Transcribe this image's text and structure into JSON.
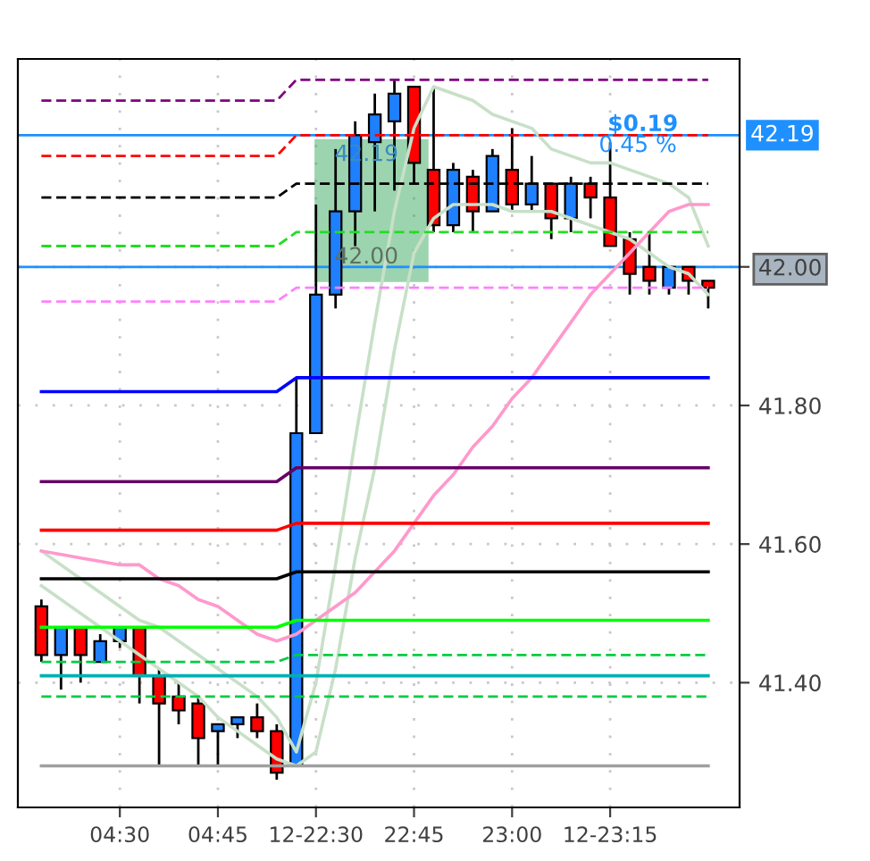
{
  "chart_data": {
    "type": "candlestick",
    "categories": [
      null,
      null,
      null,
      null,
      "04:30",
      null,
      null,
      null,
      null,
      "04:45",
      null,
      null,
      null,
      null,
      "12-22:30",
      null,
      null,
      null,
      null,
      "22:45",
      null,
      null,
      null,
      null,
      "23:00",
      null,
      null,
      null,
      null,
      "12-23:15",
      null,
      null,
      null,
      null,
      null
    ],
    "ylim": [
      41.22,
      42.3
    ],
    "yticks": [
      {
        "value": 41.4,
        "label": "41.40"
      },
      {
        "value": 41.6,
        "label": "41.60"
      },
      {
        "value": 41.8,
        "label": "41.80"
      },
      {
        "value": 42.0,
        "label": "42.00"
      }
    ],
    "grid": true,
    "ref_lines": [
      {
        "axis": "y",
        "value": 42.0,
        "color": "#1e90ff"
      },
      {
        "axis": "y",
        "value": 42.19,
        "label": "42.19",
        "color": "#1e90ff"
      }
    ],
    "annotations": [
      "42.19",
      "42.00",
      "$0.19",
      "0.45 %"
    ],
    "series": [
      {
        "type": "line",
        "color": "#c8e0c8",
        "values": [
          41.59,
          41.57,
          41.55,
          41.53,
          41.51,
          41.49,
          41.48,
          41.46,
          41.44,
          41.42,
          41.4,
          41.38,
          41.35,
          41.3,
          41.4,
          41.57,
          41.75,
          41.92,
          42.08,
          42.2,
          42.26,
          42.25,
          42.24,
          42.22,
          42.21,
          42.2,
          42.17,
          42.16,
          42.15,
          42.15,
          42.14,
          42.13,
          42.12,
          42.1,
          42.03
        ]
      },
      {
        "type": "line",
        "color": "#c8e0c8",
        "values": [
          41.54,
          41.52,
          41.5,
          41.48,
          41.46,
          41.44,
          41.42,
          41.4,
          41.38,
          41.35,
          41.33,
          41.31,
          41.29,
          41.28,
          41.3,
          41.42,
          41.58,
          41.71,
          41.88,
          42.02,
          42.07,
          42.09,
          42.09,
          42.09,
          42.08,
          42.08,
          42.08,
          42.07,
          42.06,
          42.05,
          42.04,
          42.02,
          42.0,
          41.99,
          41.96
        ]
      },
      {
        "type": "line",
        "color": "#ff99cc",
        "values": [
          41.59,
          41.585,
          41.58,
          41.575,
          41.57,
          41.57,
          41.55,
          41.54,
          41.52,
          41.51,
          41.49,
          41.47,
          41.46,
          41.47,
          41.49,
          41.51,
          41.53,
          41.56,
          41.59,
          41.63,
          41.67,
          41.7,
          41.74,
          41.77,
          41.81,
          41.84,
          41.88,
          41.92,
          41.96,
          41.99,
          42.02,
          42.05,
          42.08,
          42.09,
          42.09
        ]
      },
      {
        "type": "line",
        "color": "#800080",
        "line_style": "dashed",
        "values": [
          42.24,
          42.24,
          42.24,
          42.24,
          42.24,
          42.24,
          42.24,
          42.24,
          42.24,
          42.24,
          42.24,
          42.24,
          42.24,
          42.27,
          42.27,
          42.27,
          42.27,
          42.27,
          42.27,
          42.27,
          42.27,
          42.27,
          42.27,
          42.27,
          42.27,
          42.27,
          42.27,
          42.27,
          42.27,
          42.27,
          42.27,
          42.27,
          42.27,
          42.27,
          42.27
        ]
      },
      {
        "type": "line",
        "color": "#ff0000",
        "line_style": "dashed",
        "values": [
          42.16,
          42.16,
          42.16,
          42.16,
          42.16,
          42.16,
          42.16,
          42.16,
          42.16,
          42.16,
          42.16,
          42.16,
          42.16,
          42.19,
          42.19,
          42.19,
          42.19,
          42.19,
          42.19,
          42.19,
          42.19,
          42.19,
          42.19,
          42.19,
          42.19,
          42.19,
          42.19,
          42.19,
          42.19,
          42.19,
          42.19,
          42.19,
          42.19,
          42.19,
          42.19
        ]
      },
      {
        "type": "line",
        "color": "#000000",
        "line_style": "dashed",
        "values": [
          42.1,
          42.1,
          42.1,
          42.1,
          42.1,
          42.1,
          42.1,
          42.1,
          42.1,
          42.1,
          42.1,
          42.1,
          42.1,
          42.12,
          42.12,
          42.12,
          42.12,
          42.12,
          42.12,
          42.12,
          42.12,
          42.12,
          42.12,
          42.12,
          42.12,
          42.12,
          42.12,
          42.12,
          42.12,
          42.12,
          42.12,
          42.12,
          42.12,
          42.12,
          42.12
        ]
      },
      {
        "type": "line",
        "color": "#22dd22",
        "line_style": "dashed",
        "values": [
          42.03,
          42.03,
          42.03,
          42.03,
          42.03,
          42.03,
          42.03,
          42.03,
          42.03,
          42.03,
          42.03,
          42.03,
          42.03,
          42.05,
          42.05,
          42.05,
          42.05,
          42.05,
          42.05,
          42.05,
          42.05,
          42.05,
          42.05,
          42.05,
          42.05,
          42.05,
          42.05,
          42.05,
          42.05,
          42.05,
          42.05,
          42.05,
          42.05,
          42.05,
          42.05
        ]
      },
      {
        "type": "line",
        "color": "#ff80ff",
        "line_style": "dashed",
        "values": [
          41.95,
          41.95,
          41.95,
          41.95,
          41.95,
          41.95,
          41.95,
          41.95,
          41.95,
          41.95,
          41.95,
          41.95,
          41.95,
          41.97,
          41.97,
          41.97,
          41.97,
          41.97,
          41.97,
          41.97,
          41.97,
          41.97,
          41.97,
          41.97,
          41.97,
          41.97,
          41.97,
          41.97,
          41.97,
          41.97,
          41.97,
          41.97,
          41.97,
          41.97,
          41.97
        ]
      },
      {
        "type": "line",
        "color": "#0000ff",
        "values": [
          41.82,
          41.82,
          41.82,
          41.82,
          41.82,
          41.82,
          41.82,
          41.82,
          41.82,
          41.82,
          41.82,
          41.82,
          41.82,
          41.84,
          41.84,
          41.84,
          41.84,
          41.84,
          41.84,
          41.84,
          41.84,
          41.84,
          41.84,
          41.84,
          41.84,
          41.84,
          41.84,
          41.84,
          41.84,
          41.84,
          41.84,
          41.84,
          41.84,
          41.84,
          41.84
        ]
      },
      {
        "type": "line",
        "color": "#660066",
        "values": [
          41.69,
          41.69,
          41.69,
          41.69,
          41.69,
          41.69,
          41.69,
          41.69,
          41.69,
          41.69,
          41.69,
          41.69,
          41.69,
          41.71,
          41.71,
          41.71,
          41.71,
          41.71,
          41.71,
          41.71,
          41.71,
          41.71,
          41.71,
          41.71,
          41.71,
          41.71,
          41.71,
          41.71,
          41.71,
          41.71,
          41.71,
          41.71,
          41.71,
          41.71,
          41.71
        ]
      },
      {
        "type": "line",
        "color": "#ff0000",
        "values": [
          41.62,
          41.62,
          41.62,
          41.62,
          41.62,
          41.62,
          41.62,
          41.62,
          41.62,
          41.62,
          41.62,
          41.62,
          41.62,
          41.63,
          41.63,
          41.63,
          41.63,
          41.63,
          41.63,
          41.63,
          41.63,
          41.63,
          41.63,
          41.63,
          41.63,
          41.63,
          41.63,
          41.63,
          41.63,
          41.63,
          41.63,
          41.63,
          41.63,
          41.63,
          41.63
        ]
      },
      {
        "type": "line",
        "color": "#000000",
        "values": [
          41.55,
          41.55,
          41.55,
          41.55,
          41.55,
          41.55,
          41.55,
          41.55,
          41.55,
          41.55,
          41.55,
          41.55,
          41.55,
          41.56,
          41.56,
          41.56,
          41.56,
          41.56,
          41.56,
          41.56,
          41.56,
          41.56,
          41.56,
          41.56,
          41.56,
          41.56,
          41.56,
          41.56,
          41.56,
          41.56,
          41.56,
          41.56,
          41.56,
          41.56,
          41.56
        ]
      },
      {
        "type": "line",
        "color": "#00ff00",
        "values": [
          41.48,
          41.48,
          41.48,
          41.48,
          41.48,
          41.48,
          41.48,
          41.48,
          41.48,
          41.48,
          41.48,
          41.48,
          41.48,
          41.49,
          41.49,
          41.49,
          41.49,
          41.49,
          41.49,
          41.49,
          41.49,
          41.49,
          41.49,
          41.49,
          41.49,
          41.49,
          41.49,
          41.49,
          41.49,
          41.49,
          41.49,
          41.49,
          41.49,
          41.49,
          41.49
        ]
      },
      {
        "type": "line",
        "color": "#00cc44",
        "line_style": "dashed",
        "values": [
          41.43,
          41.43,
          41.43,
          41.43,
          41.43,
          41.43,
          41.43,
          41.43,
          41.43,
          41.43,
          41.43,
          41.43,
          41.43,
          41.44,
          41.44,
          41.44,
          41.44,
          41.44,
          41.44,
          41.44,
          41.44,
          41.44,
          41.44,
          41.44,
          41.44,
          41.44,
          41.44,
          41.44,
          41.44,
          41.44,
          41.44,
          41.44,
          41.44,
          41.44,
          41.44
        ]
      },
      {
        "type": "line",
        "color": "#00b0b0",
        "values": [
          41.41,
          41.41,
          41.41,
          41.41,
          41.41,
          41.41,
          41.41,
          41.41,
          41.41,
          41.41,
          41.41,
          41.41,
          41.41,
          41.41,
          41.41,
          41.41,
          41.41,
          41.41,
          41.41,
          41.41,
          41.41,
          41.41,
          41.41,
          41.41,
          41.41,
          41.41,
          41.41,
          41.41,
          41.41,
          41.41,
          41.41,
          41.41,
          41.41,
          41.41,
          41.41
        ]
      },
      {
        "type": "line",
        "color": "#00cc44",
        "line_style": "dashed",
        "values": [
          41.38,
          41.38,
          41.38,
          41.38,
          41.38,
          41.38,
          41.38,
          41.38,
          41.38,
          41.38,
          41.38,
          41.38,
          41.38,
          41.38,
          41.38,
          41.38,
          41.38,
          41.38,
          41.38,
          41.38,
          41.38,
          41.38,
          41.38,
          41.38,
          41.38,
          41.38,
          41.38,
          41.38,
          41.38,
          41.38,
          41.38,
          41.38,
          41.38,
          41.38,
          41.38
        ]
      },
      {
        "type": "line",
        "color": "#a0a0a0",
        "values": [
          41.28,
          41.28,
          41.28,
          41.28,
          41.28,
          41.28,
          41.28,
          41.28,
          41.28,
          41.28,
          41.28,
          41.28,
          41.28,
          41.28,
          41.28,
          41.28,
          41.28,
          41.28,
          41.28,
          41.28,
          41.28,
          41.28,
          41.28,
          41.28,
          41.28,
          41.28,
          41.28,
          41.28,
          41.28,
          41.28,
          41.28,
          41.28,
          41.28,
          41.28,
          41.28
        ]
      },
      {
        "type": "candlestick",
        "colors": [
          "#ff0000",
          "#1e7fff",
          "#ff0000",
          "#1e7fff",
          "#1e7fff",
          "#ff0000",
          "#ff0000",
          "#ff0000",
          "#ff0000",
          "#1e7fff",
          "#1e7fff",
          "#ff0000",
          "#ff0000",
          "#1e7fff",
          "#1e7fff",
          "#1e7fff",
          "#1e7fff",
          "#1e7fff",
          "#1e7fff",
          "#ff0000",
          "#ff0000",
          "#1e7fff",
          "#ff0000",
          "#1e7fff",
          "#ff0000",
          "#1e7fff",
          "#ff0000",
          "#1e7fff",
          "#ff0000",
          "#ff0000",
          "#ff0000",
          "#ff0000",
          "#1e7fff",
          "#ff0000",
          "#ff0000"
        ],
        "ohlc": [
          [
            41.51,
            41.52,
            41.43,
            41.44
          ],
          [
            41.44,
            41.48,
            41.39,
            41.48
          ],
          [
            41.48,
            41.48,
            41.4,
            41.44
          ],
          [
            41.43,
            41.47,
            41.43,
            41.46
          ],
          [
            41.46,
            41.48,
            41.45,
            41.48
          ],
          [
            41.48,
            41.48,
            41.37,
            41.41
          ],
          [
            41.41,
            41.42,
            41.28,
            41.37
          ],
          [
            41.38,
            41.4,
            41.34,
            41.36
          ],
          [
            41.37,
            41.38,
            41.28,
            41.32
          ],
          [
            41.33,
            41.34,
            41.28,
            41.34
          ],
          [
            41.34,
            41.35,
            41.32,
            41.35
          ],
          [
            41.35,
            41.37,
            41.32,
            41.33
          ],
          [
            41.33,
            41.34,
            41.26,
            41.27
          ],
          [
            41.28,
            41.84,
            41.28,
            41.76
          ],
          [
            41.76,
            42.09,
            41.76,
            41.96
          ],
          [
            41.96,
            42.17,
            41.94,
            42.08
          ],
          [
            42.08,
            42.21,
            42.03,
            42.19
          ],
          [
            42.18,
            42.25,
            42.08,
            42.22
          ],
          [
            42.21,
            42.27,
            42.11,
            42.25
          ],
          [
            42.26,
            42.26,
            42.12,
            42.15
          ],
          [
            42.14,
            42.26,
            42.05,
            42.06
          ],
          [
            42.06,
            42.15,
            42.05,
            42.14
          ],
          [
            42.13,
            42.14,
            42.05,
            42.08
          ],
          [
            42.08,
            42.17,
            42.08,
            42.16
          ],
          [
            42.14,
            42.2,
            42.08,
            42.09
          ],
          [
            42.09,
            42.16,
            42.08,
            42.12
          ],
          [
            42.12,
            42.12,
            42.04,
            42.07
          ],
          [
            42.07,
            42.13,
            42.05,
            42.12
          ],
          [
            42.12,
            42.13,
            42.07,
            42.1
          ],
          [
            42.1,
            42.18,
            42.03,
            42.03
          ],
          [
            42.04,
            42.05,
            41.96,
            41.99
          ],
          [
            42.0,
            42.05,
            41.96,
            41.98
          ],
          [
            41.97,
            42.0,
            41.96,
            42.0
          ],
          [
            42.0,
            42.0,
            41.96,
            41.98
          ],
          [
            41.98,
            41.98,
            41.94,
            41.97
          ]
        ]
      }
    ]
  }
}
